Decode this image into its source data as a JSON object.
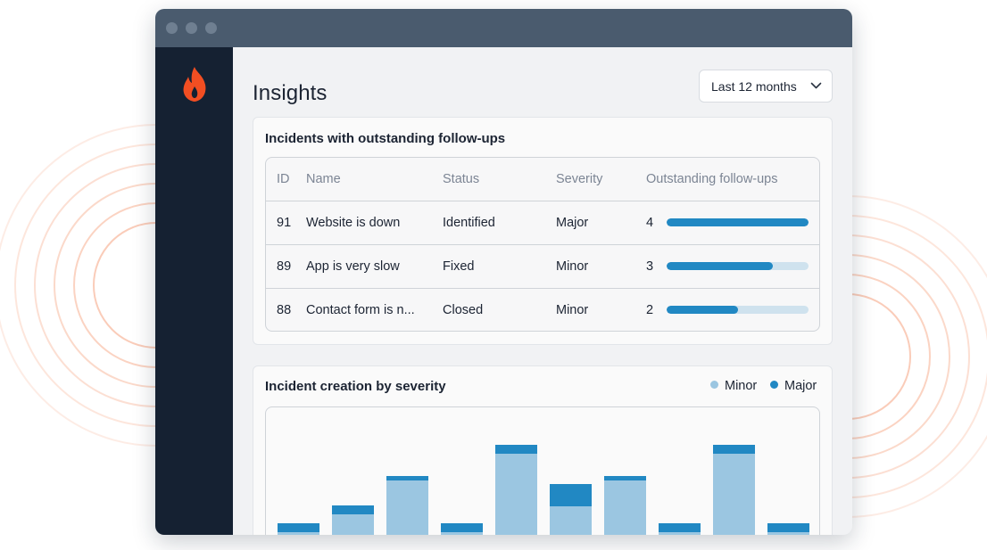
{
  "app": {
    "window_dots": 3,
    "logo_icon": "flame-icon"
  },
  "header": {
    "title": "Insights",
    "range_select": {
      "value": "Last 12 months",
      "icon": "chevron-down-icon"
    }
  },
  "followups_card": {
    "title": "Incidents with outstanding follow-ups",
    "columns": [
      "ID",
      "Name",
      "Status",
      "Severity",
      "Outstanding follow-ups"
    ],
    "rows": [
      {
        "id": "91",
        "name": "Website is down",
        "status": "Identified",
        "severity": "Major",
        "followups": "4",
        "fill": 1.0
      },
      {
        "id": "89",
        "name": "App is very slow",
        "status": "Fixed",
        "severity": "Minor",
        "followups": "3",
        "fill": 0.75
      },
      {
        "id": "88",
        "name": "Contact form is n...",
        "status": "Closed",
        "severity": "Minor",
        "followups": "2",
        "fill": 0.5
      }
    ]
  },
  "severity_card": {
    "title": "Incident creation by severity",
    "legend": [
      {
        "label": "Minor",
        "color": "#9bc6e1"
      },
      {
        "label": "Major",
        "color": "#2188c3"
      }
    ]
  },
  "chart_data": {
    "type": "bar",
    "stacked": true,
    "categories": [
      "",
      "",
      "",
      "",
      "",
      "",
      "",
      "",
      "",
      ""
    ],
    "series": [
      {
        "name": "Minor",
        "color": "#9bc6e1",
        "values": [
          1.5,
          3.5,
          7.3,
          1.5,
          10.3,
          4.4,
          7.3,
          1.5,
          10.3,
          1.5
        ]
      },
      {
        "name": "Major",
        "color": "#2188c3",
        "values": [
          1,
          1,
          0.5,
          1,
          1,
          2.5,
          0.5,
          1,
          1,
          1
        ]
      }
    ],
    "ylim": [
      0,
      15
    ],
    "grid": false,
    "legend_position": "top-right"
  },
  "colors": {
    "accent": "#2188c3",
    "accent_light": "#9bc6e1",
    "brand": "#f24e22",
    "sidebar": "#152132",
    "titlebar": "#4a5b6e"
  }
}
